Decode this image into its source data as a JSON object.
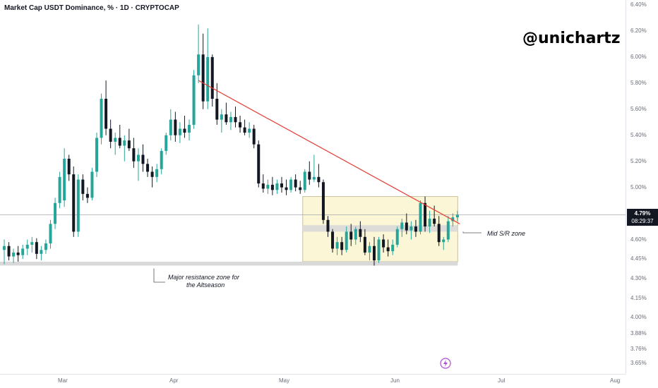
{
  "header": {
    "title": "Market Cap USDT Dominance, % · 1D · CRYPTOCAP"
  },
  "watermark": "@unichartz",
  "price_axis": {
    "current_price": "4.79%",
    "countdown": "08:29:37",
    "labels": [
      "6.40%",
      "6.20%",
      "6.00%",
      "5.80%",
      "5.60%",
      "5.40%",
      "5.20%",
      "5.00%",
      "4.60%",
      "4.45%",
      "4.30%",
      "4.15%",
      "4.00%",
      "3.88%",
      "3.76%",
      "3.65%"
    ]
  },
  "time_axis": {
    "labels": [
      "Mar",
      "Apr",
      "May",
      "Jun",
      "Jul",
      "Aug"
    ]
  },
  "annotations": {
    "major_zone_line1": "Major resistance zone for",
    "major_zone_line2": "the Altseason",
    "mid_zone": "Mid S/R zone"
  },
  "icons": {
    "bolt": "lightning-bolt-icon"
  },
  "colors": {
    "up": "#26a69a",
    "down": "#131722",
    "trendline": "#e53935",
    "zone_fill": "#fbf6d6",
    "zone_border": "#c8c0a0",
    "band": "#d9d9d9",
    "bolt": "#b04bd6"
  },
  "chart_data": {
    "type": "candlestick",
    "title": "Market Cap USDT Dominance, % · 1D · CRYPTOCAP",
    "y_unit": "%",
    "ylim": [
      3.62,
      6.45
    ],
    "x_ticks": [
      "Mar",
      "Apr",
      "May",
      "Jun",
      "Jul",
      "Aug"
    ],
    "candles": [
      [
        4.52,
        4.6,
        4.41,
        4.55
      ],
      [
        4.55,
        4.58,
        4.44,
        4.47
      ],
      [
        4.47,
        4.53,
        4.42,
        4.5
      ],
      [
        4.5,
        4.55,
        4.43,
        4.48
      ],
      [
        4.48,
        4.56,
        4.45,
        4.53
      ],
      [
        4.53,
        4.6,
        4.48,
        4.56
      ],
      [
        4.56,
        4.62,
        4.5,
        4.58
      ],
      [
        4.58,
        4.61,
        4.45,
        4.49
      ],
      [
        4.49,
        4.55,
        4.44,
        4.52
      ],
      [
        4.52,
        4.6,
        4.49,
        4.57
      ],
      [
        4.57,
        4.75,
        4.53,
        4.72
      ],
      [
        4.72,
        4.92,
        4.68,
        4.88
      ],
      [
        4.88,
        5.12,
        4.84,
        5.08
      ],
      [
        4.9,
        5.3,
        4.85,
        5.22
      ],
      [
        5.22,
        5.25,
        5.05,
        5.1
      ],
      [
        5.1,
        5.16,
        4.62,
        4.66
      ],
      [
        4.66,
        5.1,
        4.62,
        5.06
      ],
      [
        5.06,
        5.1,
        4.9,
        4.95
      ],
      [
        4.95,
        5.0,
        4.88,
        4.92
      ],
      [
        4.92,
        5.15,
        4.9,
        5.12
      ],
      [
        5.12,
        5.42,
        5.08,
        5.38
      ],
      [
        5.38,
        5.72,
        5.33,
        5.68
      ],
      [
        5.68,
        5.82,
        5.4,
        5.45
      ],
      [
        5.45,
        5.52,
        5.3,
        5.35
      ],
      [
        5.35,
        5.42,
        5.25,
        5.38
      ],
      [
        5.38,
        5.48,
        5.3,
        5.32
      ],
      [
        5.32,
        5.4,
        5.2,
        5.36
      ],
      [
        5.36,
        5.45,
        5.28,
        5.3
      ],
      [
        5.3,
        5.38,
        5.15,
        5.2
      ],
      [
        5.2,
        5.3,
        5.05,
        5.25
      ],
      [
        5.25,
        5.33,
        5.12,
        5.18
      ],
      [
        5.18,
        5.22,
        5.08,
        5.12
      ],
      [
        5.12,
        5.16,
        5.0,
        5.08
      ],
      [
        5.08,
        5.18,
        5.04,
        5.14
      ],
      [
        5.14,
        5.3,
        5.1,
        5.28
      ],
      [
        5.28,
        5.42,
        5.25,
        5.4
      ],
      [
        5.4,
        5.6,
        5.36,
        5.52
      ],
      [
        5.52,
        5.58,
        5.35,
        5.4
      ],
      [
        5.4,
        5.5,
        5.34,
        5.45
      ],
      [
        5.45,
        5.55,
        5.38,
        5.42
      ],
      [
        5.42,
        5.52,
        5.36,
        5.48
      ],
      [
        5.48,
        5.9,
        5.45,
        5.86
      ],
      [
        5.86,
        6.25,
        5.8,
        6.02
      ],
      [
        6.02,
        6.18,
        5.6,
        5.66
      ],
      [
        5.66,
        6.22,
        5.6,
        6.0
      ],
      [
        6.0,
        6.02,
        5.62,
        5.68
      ],
      [
        5.68,
        5.8,
        5.48,
        5.52
      ],
      [
        5.52,
        5.6,
        5.42,
        5.56
      ],
      [
        5.56,
        5.65,
        5.48,
        5.5
      ],
      [
        5.5,
        5.58,
        5.44,
        5.54
      ],
      [
        5.54,
        5.62,
        5.46,
        5.5
      ],
      [
        5.5,
        5.55,
        5.42,
        5.46
      ],
      [
        5.46,
        5.52,
        5.4,
        5.42
      ],
      [
        5.42,
        5.5,
        5.38,
        5.45
      ],
      [
        5.45,
        5.48,
        5.3,
        5.33
      ],
      [
        5.33,
        5.36,
        5.0,
        5.03
      ],
      [
        5.03,
        5.1,
        4.96,
        4.99
      ],
      [
        4.99,
        5.06,
        4.95,
        5.02
      ],
      [
        5.02,
        5.08,
        4.94,
        4.98
      ],
      [
        4.98,
        5.06,
        4.95,
        5.03
      ],
      [
        5.03,
        5.08,
        4.96,
        5.0
      ],
      [
        5.0,
        5.06,
        4.94,
        4.98
      ],
      [
        4.98,
        5.08,
        4.96,
        5.06
      ],
      [
        5.06,
        5.1,
        4.97,
        5.0
      ],
      [
        5.0,
        5.05,
        4.95,
        4.98
      ],
      [
        4.98,
        5.14,
        4.96,
        5.12
      ],
      [
        5.12,
        5.2,
        5.02,
        5.06
      ],
      [
        5.06,
        5.25,
        5.04,
        5.08
      ],
      [
        5.08,
        5.18,
        5.0,
        5.04
      ],
      [
        5.04,
        5.06,
        4.72,
        4.75
      ],
      [
        4.75,
        4.78,
        4.62,
        4.66
      ],
      [
        4.66,
        4.68,
        4.5,
        4.53
      ],
      [
        4.53,
        4.62,
        4.48,
        4.58
      ],
      [
        4.58,
        4.62,
        4.48,
        4.52
      ],
      [
        4.52,
        4.7,
        4.5,
        4.66
      ],
      [
        4.66,
        4.72,
        4.55,
        4.6
      ],
      [
        4.6,
        4.7,
        4.56,
        4.68
      ],
      [
        4.68,
        4.74,
        4.58,
        4.62
      ],
      [
        4.62,
        4.68,
        4.48,
        4.5
      ],
      [
        4.5,
        4.58,
        4.44,
        4.55
      ],
      [
        4.55,
        4.62,
        4.4,
        4.44
      ],
      [
        4.44,
        4.62,
        4.42,
        4.6
      ],
      [
        4.6,
        4.64,
        4.5,
        4.54
      ],
      [
        4.54,
        4.6,
        4.47,
        4.51
      ],
      [
        4.51,
        4.6,
        4.48,
        4.56
      ],
      [
        4.56,
        4.7,
        4.54,
        4.68
      ],
      [
        4.68,
        4.76,
        4.62,
        4.73
      ],
      [
        4.73,
        4.8,
        4.64,
        4.67
      ],
      [
        4.67,
        4.74,
        4.6,
        4.7
      ],
      [
        4.7,
        4.75,
        4.62,
        4.66
      ],
      [
        4.66,
        4.9,
        4.64,
        4.88
      ],
      [
        4.88,
        4.93,
        4.66,
        4.7
      ],
      [
        4.7,
        4.82,
        4.65,
        4.76
      ],
      [
        4.76,
        4.86,
        4.7,
        4.72
      ],
      [
        4.72,
        4.78,
        4.55,
        4.58
      ],
      [
        4.58,
        4.62,
        4.52,
        4.6
      ],
      [
        4.6,
        4.78,
        4.58,
        4.74
      ],
      [
        4.74,
        4.8,
        4.7,
        4.77
      ],
      [
        4.77,
        4.82,
        4.74,
        4.79
      ]
    ],
    "trendline": {
      "from": [
        42,
        5.82
      ],
      "to": [
        97,
        4.72
      ]
    },
    "zones": [
      {
        "label": "Mid S/R zone",
        "from_index": 65,
        "to_index": 97,
        "top": 4.93,
        "bottom": 4.43
      },
      {
        "label": "Major resistance zone for the Altseason",
        "from_index": 0,
        "to_index": 97,
        "top": 4.43,
        "bottom": 4.4
      }
    ],
    "mid_band": {
      "top": 4.71,
      "bottom": 4.66
    },
    "current_price": 4.79
  }
}
